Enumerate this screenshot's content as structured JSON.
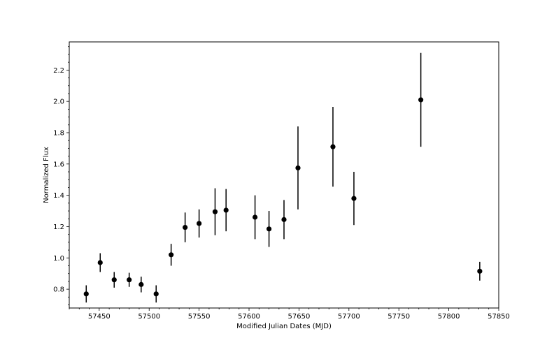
{
  "chart_data": {
    "type": "scatter",
    "title": "",
    "xlabel": "Modified Julian Dates (MJD)",
    "ylabel": "Normalized Flux",
    "xlim": [
      57420,
      57850
    ],
    "ylim": [
      0.68,
      2.38
    ],
    "x_ticks": [
      57450,
      57500,
      57550,
      57600,
      57650,
      57700,
      57750,
      57800,
      57850
    ],
    "y_ticks": [
      0.8,
      1.0,
      1.2,
      1.4,
      1.6,
      1.8,
      2.0,
      2.2
    ],
    "x_tick_labels": [
      "57450",
      "57500",
      "57550",
      "57600",
      "57650",
      "57700",
      "57750",
      "57800",
      "57850"
    ],
    "y_tick_labels": [
      "0.8",
      "1.0",
      "1.2",
      "1.4",
      "1.6",
      "1.8",
      "2.0",
      "2.2"
    ],
    "grid": false,
    "marker_color": "#000000",
    "points": [
      {
        "x": 57437,
        "y": 0.77,
        "err": 0.055
      },
      {
        "x": 57451,
        "y": 0.97,
        "err": 0.06
      },
      {
        "x": 57465,
        "y": 0.86,
        "err": 0.05
      },
      {
        "x": 57480,
        "y": 0.86,
        "err": 0.045
      },
      {
        "x": 57492,
        "y": 0.83,
        "err": 0.05
      },
      {
        "x": 57507,
        "y": 0.77,
        "err": 0.055
      },
      {
        "x": 57522,
        "y": 1.02,
        "err": 0.07
      },
      {
        "x": 57536,
        "y": 1.195,
        "err": 0.095
      },
      {
        "x": 57550,
        "y": 1.22,
        "err": 0.09
      },
      {
        "x": 57566,
        "y": 1.295,
        "err": 0.15
      },
      {
        "x": 57577,
        "y": 1.305,
        "err": 0.135
      },
      {
        "x": 57606,
        "y": 1.26,
        "err": 0.14
      },
      {
        "x": 57620,
        "y": 1.185,
        "err": 0.115
      },
      {
        "x": 57635,
        "y": 1.245,
        "err": 0.125
      },
      {
        "x": 57649,
        "y": 1.575,
        "err": 0.265
      },
      {
        "x": 57684,
        "y": 1.71,
        "err": 0.255
      },
      {
        "x": 57705,
        "y": 1.38,
        "err": 0.17
      },
      {
        "x": 57772,
        "y": 2.01,
        "err": 0.3
      },
      {
        "x": 57831,
        "y": 0.915,
        "err": 0.06
      }
    ]
  }
}
